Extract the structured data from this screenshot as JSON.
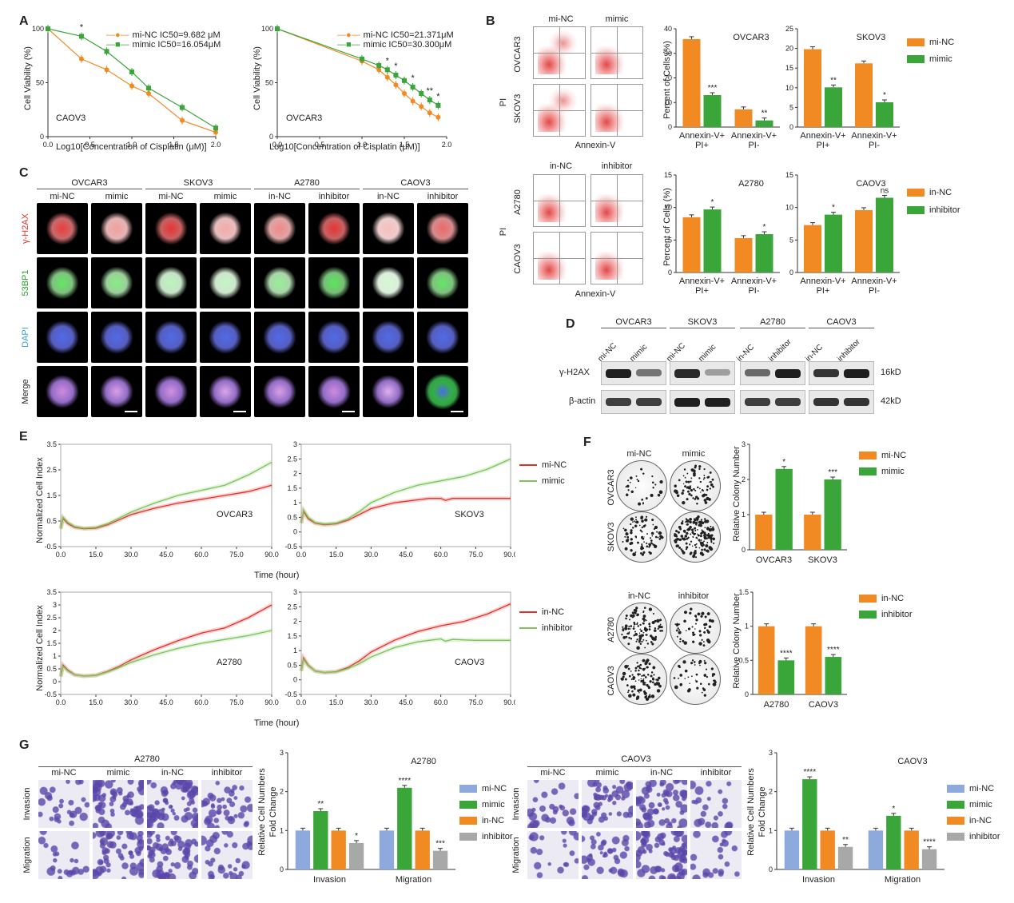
{
  "panels": {
    "A": "A",
    "B": "B",
    "C": "C",
    "D": "D",
    "E": "E",
    "F": "F",
    "G": "G"
  },
  "panelA": {
    "chart1": {
      "cell": "CAOV3",
      "legend": [
        "mi-NC  IC50=9.682 μM",
        "mimic  IC50=16.054μM"
      ],
      "ylabel": "Cell Viability (%)",
      "xlabel": "Log10[Concentration of Cisplatin (μM)]",
      "sig": [
        "*"
      ]
    },
    "chart2": {
      "cell": "OVCAR3",
      "legend": [
        "mi-NC  IC50=21.371μM",
        "mimic  IC50=30.300μM"
      ],
      "ylabel": "Cell Viability (%)",
      "xlabel": "Log10[Concentration of Cisplatin (μM)]",
      "sig": [
        "*",
        "*",
        "*",
        "**",
        "*"
      ]
    }
  },
  "panelB": {
    "top": {
      "cols": [
        "mi-NC",
        "mimic"
      ],
      "rows": [
        "OVCAR3",
        "SKOV3"
      ],
      "ylabel": "PI",
      "xlabel": "Annexin-V"
    },
    "bottom": {
      "cols": [
        "in-NC",
        "inhibitor"
      ],
      "rows": [
        "A2780",
        "CAOV3"
      ],
      "ylabel": "PI",
      "xlabel": "Annexin-V"
    },
    "legend_top": [
      "mi-NC",
      "mimic"
    ],
    "legend_bottom": [
      "in-NC",
      "inhibitor"
    ],
    "ylabel": "Percent of Cells (%)",
    "categories": [
      "Annexin-V+\nPI+",
      "Annexin-V+\nPI-"
    ]
  },
  "panelC": {
    "groups": [
      "OVCAR3",
      "SKOV3",
      "A2780",
      "CAOV3"
    ],
    "cols": [
      "mi-NC",
      "mimic",
      "mi-NC",
      "mimic",
      "in-NC",
      "inhibitor",
      "in-NC",
      "inhibitor"
    ],
    "rows": [
      "γ-H2AX",
      "53BP1",
      "DAPI",
      "Merge"
    ]
  },
  "panelD": {
    "groups": [
      "OVCAR3",
      "SKOV3",
      "A2780",
      "CAOV3"
    ],
    "lanes": [
      "mi-NC",
      "mimic",
      "mi-NC",
      "mimic",
      "in-NC",
      "inhibitor",
      "in-NC",
      "inhibitor"
    ],
    "rows": [
      "γ-H2AX",
      "β-actin"
    ],
    "sizes": [
      "16kD",
      "42kD"
    ]
  },
  "panelE": {
    "ylabel": "Normalized Cell Index",
    "xlabel": "Time (hour)",
    "legend_top": [
      "mi-NC",
      "mimic"
    ],
    "legend_bottom": [
      "in-NC",
      "inhibitor"
    ],
    "cells": [
      "OVCAR3",
      "SKOV3",
      "A2780",
      "CAOV3"
    ]
  },
  "panelF": {
    "top": {
      "cols": [
        "mi-NC",
        "mimic"
      ],
      "rows": [
        "OVCAR3",
        "SKOV3"
      ]
    },
    "bottom": {
      "cols": [
        "in-NC",
        "inhibitor"
      ],
      "rows": [
        "A2780",
        "CAOV3"
      ]
    },
    "ylabel": "Relative Colony Number",
    "legend_top": [
      "mi-NC",
      "mimic"
    ],
    "legend_bottom": [
      "in-NC",
      "inhibitor"
    ]
  },
  "panelG": {
    "left": {
      "title": "A2780",
      "cols": [
        "mi-NC",
        "mimic",
        "in-NC",
        "inhibitor"
      ],
      "rows": [
        "Invasion",
        "Migration"
      ]
    },
    "right": {
      "title": "CAOV3",
      "cols": [
        "mi-NC",
        "mimic",
        "in-NC",
        "inhibitor"
      ],
      "rows": [
        "Invasion",
        "Migration"
      ]
    },
    "ylabel1": "Relative Cell Numbers",
    "ylabel2": "Fold Change",
    "legend": [
      "mi-NC",
      "mimic",
      "in-NC",
      "inhibitor"
    ]
  },
  "colors": {
    "orange": "#f28a24",
    "green": "#3aa63a",
    "red": "#e0322b",
    "lightgreen": "#7cc45a",
    "blue": "#8ea9dc",
    "gray": "#a8a8a8"
  },
  "chart_data": [
    {
      "id": "A1",
      "type": "line",
      "title": "",
      "xlabel": "Log10[Concentration of Cisplatin (μM)]",
      "ylabel": "Cell Viability (%)",
      "xlim": [
        0,
        2.0
      ],
      "ylim": [
        0,
        100
      ],
      "xticks": [
        0.0,
        0.5,
        1.0,
        1.5,
        2.0
      ],
      "yticks": [
        0,
        50,
        100
      ],
      "series": [
        {
          "name": "mi-NC",
          "color": "#f28a24",
          "x": [
            0.0,
            0.4,
            0.7,
            1.0,
            1.2,
            1.6,
            2.0
          ],
          "y": [
            100,
            72,
            62,
            47,
            40,
            15,
            4
          ]
        },
        {
          "name": "mimic",
          "color": "#3aa63a",
          "x": [
            0.0,
            0.4,
            0.7,
            1.0,
            1.2,
            1.6,
            2.0
          ],
          "y": [
            100,
            93,
            79,
            60,
            45,
            27,
            8
          ]
        }
      ]
    },
    {
      "id": "A2",
      "type": "line",
      "title": "",
      "xlabel": "Log10[Concentration of Cisplatin (μM)]",
      "ylabel": "Cell Viability (%)",
      "xlim": [
        0,
        2.0
      ],
      "ylim": [
        0,
        100
      ],
      "xticks": [
        0.0,
        0.5,
        1.0,
        1.5,
        2.0
      ],
      "yticks": [
        0,
        50,
        100
      ],
      "series": [
        {
          "name": "mi-NC",
          "color": "#f28a24",
          "x": [
            0.0,
            1.0,
            1.2,
            1.3,
            1.4,
            1.5,
            1.6,
            1.7,
            1.8,
            1.9
          ],
          "y": [
            100,
            70,
            62,
            55,
            48,
            40,
            33,
            28,
            22,
            18
          ]
        },
        {
          "name": "mimic",
          "color": "#3aa63a",
          "x": [
            0.0,
            1.0,
            1.2,
            1.3,
            1.4,
            1.5,
            1.6,
            1.7,
            1.8,
            1.9
          ],
          "y": [
            100,
            72,
            66,
            62,
            57,
            52,
            46,
            40,
            34,
            29
          ]
        }
      ]
    },
    {
      "id": "B-OVCAR3",
      "type": "bar",
      "title": "OVCAR3",
      "ylabel": "Percent of Cells (%)",
      "ylim": [
        0,
        40
      ],
      "yticks": [
        0,
        10,
        20,
        30,
        40
      ],
      "categories": [
        "Annexin-V+ PI+",
        "Annexin-V+ PI-"
      ],
      "series": [
        {
          "name": "mi-NC",
          "values": [
            35.8,
            7.2
          ]
        },
        {
          "name": "mimic",
          "values": [
            13.0,
            2.7
          ]
        }
      ],
      "sig": [
        "***",
        "**"
      ]
    },
    {
      "id": "B-SKOV3",
      "type": "bar",
      "title": "SKOV3",
      "ylabel": "",
      "ylim": [
        0,
        25
      ],
      "yticks": [
        0,
        5,
        10,
        15,
        20,
        25
      ],
      "categories": [
        "Annexin-V+ PI+",
        "Annexin-V+ PI-"
      ],
      "series": [
        {
          "name": "mi-NC",
          "values": [
            19.8,
            16.2
          ]
        },
        {
          "name": "mimic",
          "values": [
            10.1,
            6.3
          ]
        }
      ],
      "sig": [
        "**",
        "*"
      ]
    },
    {
      "id": "B-A2780",
      "type": "bar",
      "title": "A2780",
      "ylabel": "Percent of Cells (%)",
      "ylim": [
        0,
        15
      ],
      "yticks": [
        0,
        5,
        10,
        15
      ],
      "categories": [
        "Annexin-V+ PI+",
        "Annexin-V+ PI-"
      ],
      "series": [
        {
          "name": "in-NC",
          "values": [
            8.5,
            5.3
          ]
        },
        {
          "name": "inhibitor",
          "values": [
            9.7,
            5.9
          ]
        }
      ],
      "sig": [
        "*",
        "*"
      ]
    },
    {
      "id": "B-CAOV3",
      "type": "bar",
      "title": "CAOV3",
      "ylabel": "",
      "ylim": [
        0,
        15
      ],
      "yticks": [
        0,
        5,
        10,
        15
      ],
      "categories": [
        "Annexin-V+ PI+",
        "Annexin-V+ PI-"
      ],
      "series": [
        {
          "name": "in-NC",
          "values": [
            7.3,
            9.6
          ]
        },
        {
          "name": "inhibitor",
          "values": [
            8.9,
            11.5
          ]
        }
      ],
      "sig": [
        "*",
        "ns"
      ]
    },
    {
      "id": "E-OVCAR3",
      "type": "line",
      "ylabel": "Normalized Cell Index",
      "xlabel": "Time (hour)",
      "xlim": [
        0,
        90
      ],
      "ylim": [
        -0.5,
        3.5
      ],
      "xticks": [
        0.0,
        15.0,
        30.0,
        45.0,
        60.0,
        75.0,
        90.0
      ],
      "yticks": [
        -0.5,
        0.5,
        1.5,
        2.5,
        3.5
      ],
      "series": [
        {
          "name": "mi-NC",
          "color": "#e0322b",
          "x": [
            0,
            1,
            3,
            6,
            10,
            15,
            20,
            25,
            30,
            40,
            50,
            60,
            70,
            80,
            90
          ],
          "y": [
            0.2,
            0.6,
            0.4,
            0.25,
            0.2,
            0.22,
            0.35,
            0.55,
            0.75,
            1.0,
            1.2,
            1.35,
            1.5,
            1.65,
            1.9
          ]
        },
        {
          "name": "mimic",
          "color": "#7cc45a",
          "x": [
            0,
            1,
            3,
            6,
            10,
            15,
            20,
            25,
            30,
            40,
            50,
            60,
            70,
            80,
            90
          ],
          "y": [
            0.2,
            0.65,
            0.45,
            0.28,
            0.22,
            0.25,
            0.4,
            0.62,
            0.85,
            1.2,
            1.5,
            1.7,
            1.9,
            2.3,
            2.8
          ]
        }
      ]
    },
    {
      "id": "E-SKOV3",
      "type": "line",
      "ylabel": "",
      "xlabel": "Time (hour)",
      "xlim": [
        0,
        90
      ],
      "ylim": [
        -0.5,
        3.0
      ],
      "xticks": [
        0.0,
        15.0,
        30.0,
        45.0,
        60.0,
        75.0,
        90.0
      ],
      "yticks": [
        -0.5,
        0.0,
        0.5,
        1.0,
        1.5,
        2.0,
        2.5,
        3.0
      ],
      "series": [
        {
          "name": "mi-NC",
          "color": "#e0322b",
          "x": [
            0,
            1,
            3,
            6,
            10,
            15,
            20,
            25,
            30,
            40,
            50,
            55,
            60,
            62,
            65,
            75,
            90
          ],
          "y": [
            0.3,
            0.7,
            0.45,
            0.3,
            0.25,
            0.28,
            0.4,
            0.6,
            0.8,
            1.0,
            1.1,
            1.15,
            1.15,
            1.08,
            1.15,
            1.15,
            1.15
          ]
        },
        {
          "name": "mimic",
          "color": "#7cc45a",
          "x": [
            0,
            1,
            3,
            6,
            10,
            15,
            20,
            25,
            30,
            40,
            50,
            60,
            70,
            80,
            90
          ],
          "y": [
            0.3,
            0.75,
            0.5,
            0.32,
            0.27,
            0.3,
            0.45,
            0.7,
            1.0,
            1.35,
            1.6,
            1.75,
            1.9,
            2.15,
            2.5
          ]
        }
      ]
    },
    {
      "id": "E-A2780",
      "type": "line",
      "ylabel": "Normalized Cell Index",
      "xlabel": "Time (hour)",
      "xlim": [
        0,
        90
      ],
      "ylim": [
        -0.5,
        3.5
      ],
      "xticks": [
        0.0,
        15.0,
        30.0,
        45.0,
        60.0,
        75.0,
        90.0
      ],
      "yticks": [
        -0.5,
        0.0,
        0.5,
        1.0,
        1.5,
        2.0,
        2.5,
        3.0,
        3.5
      ],
      "series": [
        {
          "name": "in-NC",
          "color": "#e0322b",
          "x": [
            0,
            1,
            3,
            6,
            10,
            15,
            20,
            25,
            30,
            40,
            50,
            60,
            70,
            80,
            90
          ],
          "y": [
            0.2,
            0.65,
            0.45,
            0.27,
            0.22,
            0.25,
            0.4,
            0.6,
            0.85,
            1.25,
            1.6,
            1.9,
            2.1,
            2.5,
            3.0
          ]
        },
        {
          "name": "inhibitor",
          "color": "#7cc45a",
          "x": [
            0,
            1,
            3,
            6,
            10,
            15,
            20,
            25,
            30,
            40,
            50,
            60,
            70,
            80,
            90
          ],
          "y": [
            0.2,
            0.6,
            0.42,
            0.26,
            0.22,
            0.24,
            0.38,
            0.55,
            0.75,
            1.05,
            1.3,
            1.5,
            1.65,
            1.8,
            2.0
          ]
        }
      ]
    },
    {
      "id": "E-CAOV3",
      "type": "line",
      "ylabel": "",
      "xlabel": "Time (hour)",
      "xlim": [
        0,
        90
      ],
      "ylim": [
        -0.5,
        3.0
      ],
      "xticks": [
        0.0,
        15.0,
        30.0,
        45.0,
        60.0,
        75.0,
        90.0
      ],
      "yticks": [
        -0.5,
        0.0,
        0.5,
        1.0,
        1.5,
        2.0,
        2.5,
        3.0
      ],
      "series": [
        {
          "name": "in-NC",
          "color": "#e0322b",
          "x": [
            0,
            1,
            3,
            6,
            10,
            15,
            20,
            25,
            30,
            40,
            50,
            60,
            70,
            80,
            90
          ],
          "y": [
            0.3,
            0.75,
            0.5,
            0.3,
            0.25,
            0.28,
            0.42,
            0.65,
            0.95,
            1.35,
            1.65,
            1.85,
            2.0,
            2.25,
            2.6
          ]
        },
        {
          "name": "inhibitor",
          "color": "#7cc45a",
          "x": [
            0,
            1,
            3,
            6,
            10,
            15,
            20,
            25,
            30,
            40,
            50,
            55,
            60,
            62,
            65,
            75,
            90
          ],
          "y": [
            0.3,
            0.7,
            0.48,
            0.3,
            0.25,
            0.27,
            0.38,
            0.55,
            0.78,
            1.1,
            1.3,
            1.35,
            1.4,
            1.32,
            1.38,
            1.35,
            1.35
          ]
        }
      ]
    },
    {
      "id": "F-top",
      "type": "bar",
      "ylabel": "Relative Colony Number",
      "ylim": [
        0,
        3
      ],
      "yticks": [
        0,
        1,
        2,
        3
      ],
      "categories": [
        "OVCAR3",
        "SKOV3"
      ],
      "series": [
        {
          "name": "mi-NC",
          "values": [
            1.0,
            1.0
          ]
        },
        {
          "name": "mimic",
          "values": [
            2.3,
            2.0
          ]
        }
      ],
      "sig": [
        "*",
        "***"
      ]
    },
    {
      "id": "F-bottom",
      "type": "bar",
      "ylabel": "Relative Colony Number",
      "ylim": [
        0,
        1.5
      ],
      "yticks": [
        0.0,
        0.5,
        1.0,
        1.5
      ],
      "categories": [
        "A2780",
        "CAOV3"
      ],
      "series": [
        {
          "name": "in-NC",
          "values": [
            1.0,
            1.0
          ]
        },
        {
          "name": "inhibitor",
          "values": [
            0.5,
            0.55
          ]
        }
      ],
      "sig": [
        "****",
        "****"
      ]
    },
    {
      "id": "G-A2780",
      "type": "bar",
      "title": "A2780",
      "ylabel": "Relative Cell Numbers Fold Change",
      "ylim": [
        0,
        3
      ],
      "yticks": [
        0,
        1,
        2,
        3
      ],
      "categories": [
        "Invasion",
        "Migration"
      ],
      "series": [
        {
          "name": "mi-NC",
          "values": [
            1.0,
            1.0
          ]
        },
        {
          "name": "mimic",
          "values": [
            1.5,
            2.1
          ]
        },
        {
          "name": "in-NC",
          "values": [
            1.0,
            1.0
          ]
        },
        {
          "name": "inhibitor",
          "values": [
            0.68,
            0.48
          ]
        }
      ],
      "sig": [
        "**",
        "*",
        "****",
        "***"
      ]
    },
    {
      "id": "G-CAOV3",
      "type": "bar",
      "title": "CAOV3",
      "ylabel": "Relative Cell Numbers Fold Change",
      "ylim": [
        0,
        3
      ],
      "yticks": [
        0,
        1,
        2,
        3
      ],
      "categories": [
        "Invasion",
        "Migration"
      ],
      "series": [
        {
          "name": "mi-NC",
          "values": [
            1.0,
            1.0
          ]
        },
        {
          "name": "mimic",
          "values": [
            2.32,
            1.38
          ]
        },
        {
          "name": "in-NC",
          "values": [
            1.0,
            1.0
          ]
        },
        {
          "name": "inhibitor",
          "values": [
            0.58,
            0.52
          ]
        }
      ],
      "sig": [
        "****",
        "**",
        "*",
        "****"
      ]
    }
  ]
}
